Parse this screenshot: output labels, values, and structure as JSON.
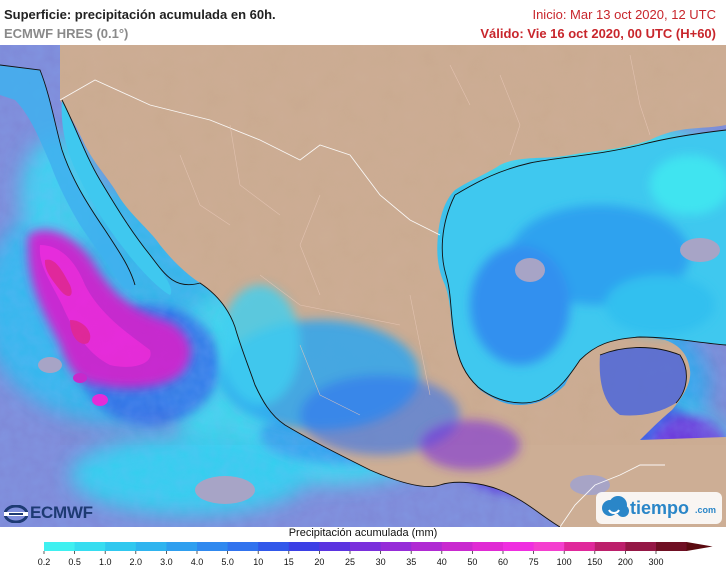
{
  "header": {
    "title": "Superficie: precipitación acumulada en 60h.",
    "model": "ECMWF HRES (0.1°)",
    "init": "Inicio: Mar 13 oct 2020, 12 UTC",
    "valid": "Válido: Vie 16 oct 2020, 00 UTC (H+60)"
  },
  "logos": {
    "ecmwf": "ECMWF",
    "tiempo": "tiempo",
    "tiempo_suffix": ".com"
  },
  "legend": {
    "title": "Precipitación acumulada (mm)",
    "ticks": [
      "0.2",
      "0.5",
      "1.0",
      "2.0",
      "3.0",
      "4.0",
      "5.0",
      "10",
      "15",
      "20",
      "25",
      "30",
      "35",
      "40",
      "50",
      "60",
      "75",
      "100",
      "150",
      "200",
      "300"
    ],
    "colors": [
      "#3ff0f0",
      "#36ddf0",
      "#30c8ef",
      "#2fb4ef",
      "#2f9fef",
      "#3089ef",
      "#3173ee",
      "#3158ea",
      "#3b3fe5",
      "#5b33e0",
      "#7a2fdc",
      "#962cd8",
      "#b02ad3",
      "#c929cf",
      "#e02ad4",
      "#ef2ee0",
      "#f43fcf",
      "#e0289b",
      "#bc1f6b",
      "#941745",
      "#6f0f23"
    ],
    "arrow_color": "#5a0a10"
  },
  "colors": {
    "land": "#cdb097",
    "land_light": "#dcc6b4",
    "sea": "#7a86d8",
    "border": "#ffffff",
    "title_red": "#c8262c"
  }
}
